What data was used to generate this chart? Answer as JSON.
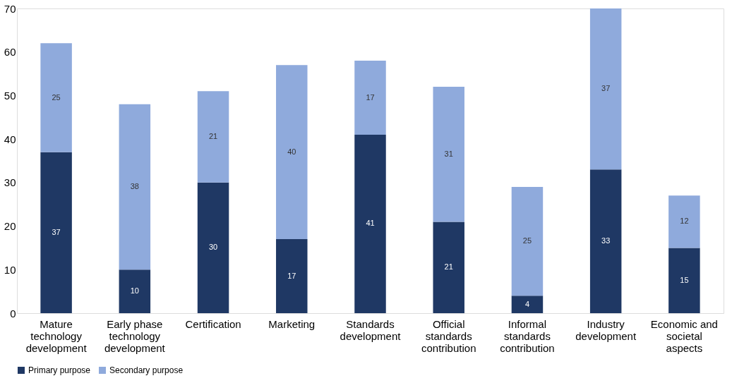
{
  "chart_data": {
    "type": "bar",
    "stacked": true,
    "data_labels": true,
    "grid": false,
    "legend": "bottom",
    "categories": [
      "Mature technology development",
      "Early phase technology development",
      "Certification",
      "Marketing",
      "Standards development",
      "Official standards contribution",
      "Informal standards contribution",
      "Industry development",
      "Economic and societal aspects"
    ],
    "series": [
      {
        "name": "Primary purpose",
        "color": "#1f3864",
        "values": [
          37,
          10,
          30,
          17,
          41,
          21,
          4,
          33,
          15
        ]
      },
      {
        "name": "Secondary purpose",
        "color": "#8faadc",
        "values": [
          25,
          38,
          21,
          40,
          17,
          31,
          25,
          37,
          12
        ]
      }
    ],
    "ylim": [
      0,
      70
    ],
    "yticks": [
      0,
      10,
      20,
      30,
      40,
      50,
      60,
      70
    ]
  }
}
